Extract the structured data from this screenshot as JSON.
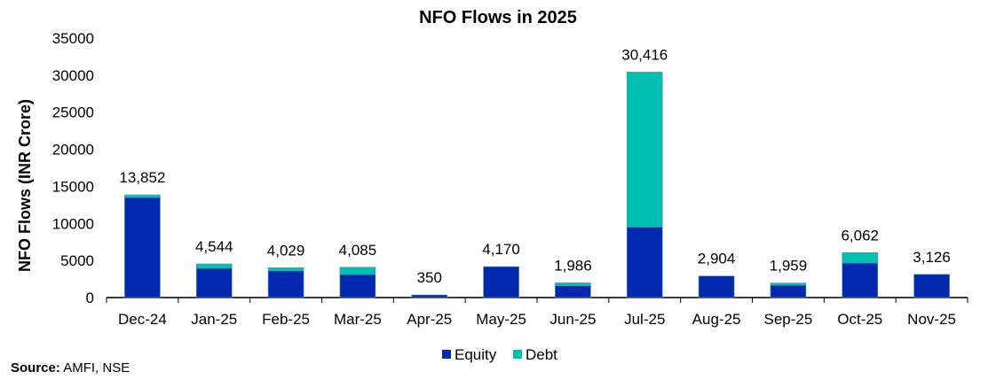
{
  "chart_data": {
    "type": "bar",
    "stacked": true,
    "title": "NFO Flows in 2025",
    "xlabel": "",
    "ylabel": "NFO Flows (INR Crore)",
    "ylim": [
      0,
      35000
    ],
    "yticks": [
      0,
      5000,
      10000,
      15000,
      20000,
      25000,
      30000,
      35000
    ],
    "categories": [
      "Dec-24",
      "Jan-25",
      "Feb-25",
      "Mar-25",
      "Apr-25",
      "May-25",
      "Jun-25",
      "Jul-25",
      "Aug-25",
      "Sep-25",
      "Oct-25",
      "Nov-25"
    ],
    "series": [
      {
        "name": "Equity",
        "color": "#0029B0",
        "values": [
          13500,
          3950,
          3600,
          3100,
          350,
          4170,
          1600,
          9500,
          2904,
          1650,
          4650,
          3126
        ]
      },
      {
        "name": "Debt",
        "color": "#00BFB3",
        "values": [
          352,
          594,
          429,
          985,
          0,
          0,
          386,
          20916,
          0,
          309,
          1412,
          0
        ]
      }
    ],
    "totals_labels": [
      "13,852",
      "4,544",
      "4,029",
      "4,085",
      "350",
      "4,170",
      "1,986",
      "30,416",
      "2,904",
      "1,959",
      "6,062",
      "3,126"
    ],
    "totals": [
      13852,
      4544,
      4029,
      4085,
      350,
      4170,
      1986,
      30416,
      2904,
      1959,
      6062,
      3126
    ],
    "legend": "bottom",
    "grid": false
  },
  "source": {
    "label": "Source:",
    "text": " AMFI, NSE"
  }
}
